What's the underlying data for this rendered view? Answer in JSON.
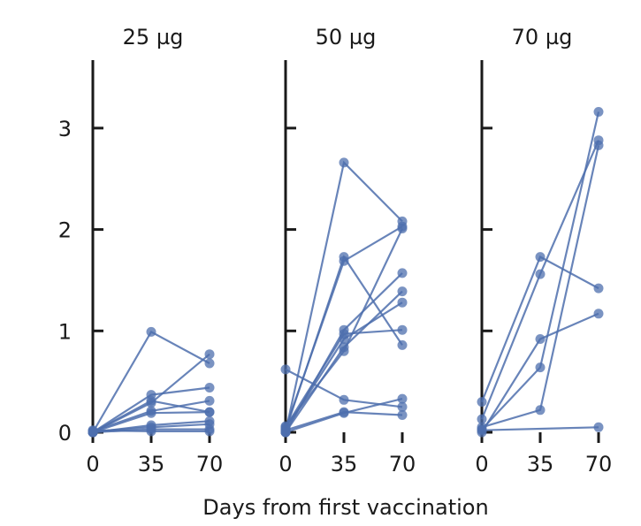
{
  "chart_data": {
    "type": "line",
    "xlabel": "Days from first vaccination",
    "ylabel": "",
    "x_ticks": [
      "0",
      "35",
      "70"
    ],
    "x_values": [
      0,
      35,
      70
    ],
    "y_ticks": [
      "0",
      "1",
      "2",
      "3"
    ],
    "ylim": [
      0,
      3.7
    ],
    "line_color": "#4d6fad",
    "marker_color": "#4d6fad",
    "axis_color": "#1a1a1a",
    "panels": [
      {
        "title": "25 µg",
        "series": [
          {
            "values": [
              0.0,
              0.99,
              0.68
            ]
          },
          {
            "values": [
              0.0,
              0.37,
              0.44
            ]
          },
          {
            "values": [
              0.0,
              0.31,
              0.2
            ]
          },
          {
            "values": [
              0.0,
              0.29,
              0.77
            ]
          },
          {
            "values": [
              0.01,
              0.21,
              0.31
            ]
          },
          {
            "values": [
              0.0,
              0.19,
              0.2
            ]
          },
          {
            "values": [
              0.0,
              0.07,
              0.11
            ]
          },
          {
            "values": [
              0.01,
              0.05,
              0.08
            ]
          },
          {
            "values": [
              0.0,
              0.03,
              0.03
            ]
          },
          {
            "values": [
              0.02,
              0.01,
              0.01
            ]
          }
        ]
      },
      {
        "title": "50 µg",
        "series": [
          {
            "values": [
              0.0,
              2.66,
              2.08
            ]
          },
          {
            "values": [
              0.02,
              1.73,
              0.86
            ]
          },
          {
            "values": [
              0.04,
              1.69,
              2.03
            ]
          },
          {
            "values": [
              0.0,
              1.01,
              1.57
            ]
          },
          {
            "values": [
              0.05,
              0.97,
              1.01
            ]
          },
          {
            "values": [
              0.03,
              0.92,
              1.28
            ]
          },
          {
            "values": [
              0.0,
              0.84,
              1.39
            ]
          },
          {
            "values": [
              0.06,
              0.8,
              2.01
            ]
          },
          {
            "values": [
              0.62,
              0.32,
              0.25
            ]
          },
          {
            "values": [
              0.02,
              0.2,
              0.17
            ]
          },
          {
            "values": [
              0.0,
              0.19,
              0.33
            ]
          }
        ]
      },
      {
        "title": "70 µg",
        "series": [
          {
            "values": [
              0.3,
              1.73,
              1.42
            ]
          },
          {
            "values": [
              0.13,
              1.56,
              2.88
            ]
          },
          {
            "values": [
              0.0,
              0.92,
              1.17
            ]
          },
          {
            "values": [
              0.03,
              0.64,
              3.16
            ]
          },
          {
            "values": [
              0.05,
              0.22,
              2.83
            ]
          },
          {
            "values": [
              0.02,
              null,
              0.05
            ]
          }
        ]
      }
    ]
  }
}
